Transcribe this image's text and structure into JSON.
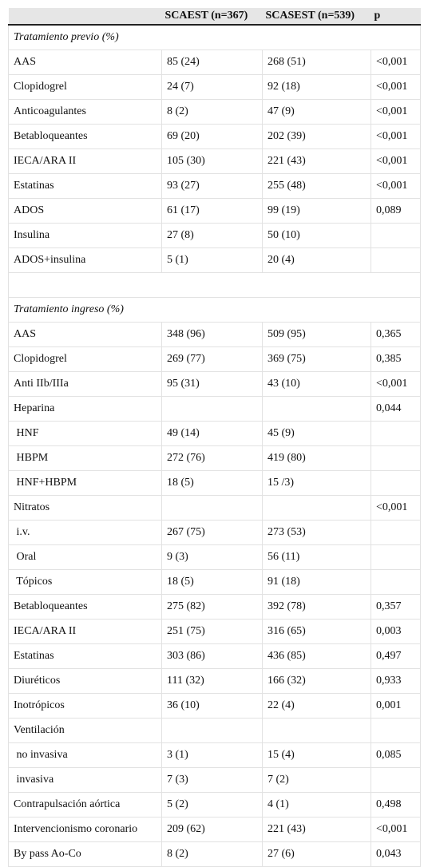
{
  "table": {
    "header": [
      "SCAEST (n=367)",
      "SCASEST (n=539)",
      "p"
    ],
    "sections": [
      {
        "title": "Tratamiento previo (%)",
        "rows": [
          [
            "AAS",
            "85 (24)",
            "268 (51)",
            "<0,001"
          ],
          [
            "Clopidogrel",
            "24 (7)",
            "92 (18)",
            "<0,001"
          ],
          [
            "Anticoagulantes",
            "8 (2)",
            "47 (9)",
            "<0,001"
          ],
          [
            "Betabloqueantes",
            "69 (20)",
            "202 (39)",
            "<0,001"
          ],
          [
            "IECA/ARA II",
            "105 (30)",
            "221 (43)",
            "<0,001"
          ],
          [
            "Estatinas",
            "93 (27)",
            "255 (48)",
            "<0,001"
          ],
          [
            "ADOS",
            "61 (17)",
            "99 (19)",
            "0,089"
          ],
          [
            "Insulina",
            "27 (8)",
            "50 (10)",
            null
          ],
          [
            "ADOS+insulina",
            "5 (1)",
            "20 (4)",
            null
          ]
        ]
      },
      {
        "title": "Tratamiento ingreso (%)",
        "rows": [
          [
            "AAS",
            "348 (96)",
            "509 (95)",
            "0,365"
          ],
          [
            "Clopidogrel",
            "269 (77)",
            "369 (75)",
            "0,385"
          ],
          [
            "Anti IIb/IIIa",
            "95 (31)",
            "43 (10)",
            "<0,001"
          ],
          [
            "Heparina",
            null,
            null,
            "0,044"
          ],
          [
            " HNF",
            "49 (14)",
            "45 (9)",
            null
          ],
          [
            " HBPM",
            "272 (76)",
            "419 (80)",
            null
          ],
          [
            " HNF+HBPM",
            "18 (5)",
            "15 /3)",
            null
          ],
          [
            "Nitratos",
            null,
            null,
            "<0,001"
          ],
          [
            " i.v.",
            "267 (75)",
            "273 (53)",
            null
          ],
          [
            " Oral",
            "9 (3)",
            "56 (11)",
            null
          ],
          [
            " Tópicos",
            "18 (5)",
            "91 (18)",
            null
          ],
          [
            "Betabloqueantes",
            "275 (82)",
            "392 (78)",
            "0,357"
          ],
          [
            "IECA/ARA II",
            "251 (75)",
            "316 (65)",
            "0,003"
          ],
          [
            "Estatinas",
            "303 (86)",
            "436 (85)",
            "0,497"
          ],
          [
            "Diuréticos",
            "111 (32)",
            "166 (32)",
            "0,933"
          ],
          [
            "Inotrópicos",
            "36 (10)",
            "22 (4)",
            "0,001"
          ],
          [
            "Ventilación",
            null,
            null,
            null
          ],
          [
            " no invasiva",
            "3 (1)",
            "15 (4)",
            "0,085"
          ],
          [
            " invasiva",
            "7 (3)",
            "7 (2)",
            null
          ],
          [
            "Contrapulsación aórtica",
            "5 (2)",
            "4 (1)",
            "0,498"
          ],
          [
            "Intervencionismo coronario",
            "209 (62)",
            "221 (43)",
            "<0,001"
          ],
          [
            "By pass Ao-Co",
            "8 (2)",
            "27 (6)",
            "0,043"
          ]
        ]
      }
    ]
  }
}
